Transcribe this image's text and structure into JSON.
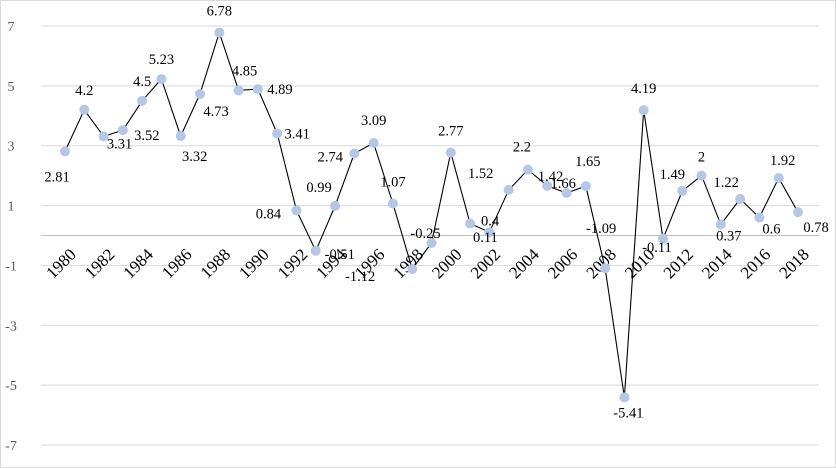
{
  "chart_data": {
    "type": "line",
    "title": "",
    "xlabel": "",
    "ylabel": "",
    "x": [
      1980,
      1981,
      1982,
      1983,
      1984,
      1985,
      1986,
      1987,
      1988,
      1989,
      1990,
      1991,
      1992,
      1993,
      1994,
      1995,
      1996,
      1997,
      1998,
      1999,
      2000,
      2001,
      2002,
      2003,
      2004,
      2005,
      2006,
      2007,
      2008,
      2009,
      2010,
      2011,
      2012,
      2013,
      2014,
      2015,
      2016,
      2017,
      2018
    ],
    "x_tick_labels": [
      "1980",
      "1982",
      "1984",
      "1986",
      "1988",
      "1990",
      "1992",
      "1994",
      "1996",
      "1998",
      "2000",
      "2002",
      "2004",
      "2006",
      "2008",
      "2010",
      "2012",
      "2014",
      "2016",
      "2018"
    ],
    "y_tick_labels": [
      "7",
      "5",
      "3",
      "1",
      "-1",
      "-3",
      "-5",
      "-7"
    ],
    "ylim": [
      -7,
      7
    ],
    "grid": "horizontal",
    "legend": "none",
    "series": [
      {
        "values": [
          2.81,
          4.2,
          3.31,
          3.52,
          4.5,
          5.23,
          3.32,
          4.73,
          6.78,
          4.85,
          4.89,
          3.41,
          0.84,
          -0.51,
          0.99,
          2.74,
          3.09,
          1.07,
          -1.12,
          -0.25,
          2.77,
          0.4,
          0.11,
          1.52,
          2.2,
          1.66,
          1.42,
          1.65,
          -1.09,
          -5.41,
          4.19,
          -0.11,
          1.49,
          2,
          0.37,
          1.22,
          0.6,
          1.92,
          0.78
        ],
        "labels": [
          "2.81",
          "4.2",
          "3.31",
          "3.52",
          "4.5",
          "5.23",
          "3.32",
          "4.73",
          "6.78",
          "4.85",
          "4.89",
          "3.41",
          "0.84",
          "-0.51",
          "0.99",
          "2.74",
          "3.09",
          "1.07",
          "-1.12",
          "-0.25",
          "2.77",
          "0.4",
          "0.11",
          "1.52",
          "2.2",
          "1.66",
          "1.42",
          "1.65",
          "-1.09",
          "-5.41",
          "4.19",
          "-0.11",
          "1.49",
          "2",
          "0.37",
          "1.22",
          "0.6",
          "1.92",
          "0.78"
        ]
      }
    ],
    "colors": {
      "line": "#000000",
      "marker": "#b4c7e7",
      "grid": "#d9d9d9",
      "axis": "#bfbfbf"
    }
  }
}
